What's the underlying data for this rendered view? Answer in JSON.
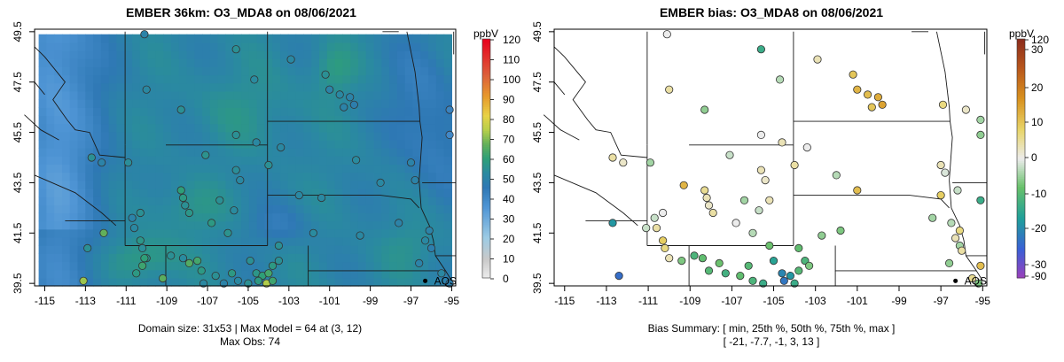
{
  "chart_data": [
    {
      "type": "heatmap",
      "title": "EMBER 36km: O3_MDA8 on 08/06/2021",
      "colorbar_label": "ppbV",
      "colorbar_ticks": [
        "0",
        "10",
        "20",
        "30",
        "40",
        "50",
        "60",
        "70",
        "80",
        "90",
        "100",
        "110",
        "120"
      ],
      "xticks": [
        -115,
        -113,
        -111,
        -109,
        -107,
        -105,
        -103,
        -101,
        -99,
        -97,
        -95
      ],
      "yticks": [
        39.5,
        41.5,
        43.5,
        45.5,
        47.5,
        49.5
      ],
      "xlim": [
        -115.5,
        -94.8
      ],
      "ylim": [
        39.4,
        49.6
      ],
      "annotation": "AQS",
      "annotation_point": [
        -96.3,
        39.6
      ],
      "footer": [
        "Domain size: 31x53 | Max Model = 64 at (3, 12)",
        "Max Obs: 74"
      ],
      "stations": [
        {
          "lon": -110.1,
          "lat": 49.4,
          "v": 50
        },
        {
          "lon": -105.6,
          "lat": 48.8,
          "v": 55
        },
        {
          "lon": -102.9,
          "lat": 48.4,
          "v": 52
        },
        {
          "lon": -101.2,
          "lat": 47.8,
          "v": 55
        },
        {
          "lon": -101.0,
          "lat": 47.2,
          "v": 50
        },
        {
          "lon": -100.5,
          "lat": 47.0,
          "v": 52
        },
        {
          "lon": -100.0,
          "lat": 46.9,
          "v": 50
        },
        {
          "lon": -99.8,
          "lat": 46.6,
          "v": 48
        },
        {
          "lon": -100.3,
          "lat": 46.5,
          "v": 50
        },
        {
          "lon": -110.0,
          "lat": 47.2,
          "v": 52
        },
        {
          "lon": -108.3,
          "lat": 46.4,
          "v": 55
        },
        {
          "lon": -104.7,
          "lat": 47.6,
          "v": 53
        },
        {
          "lon": -95.1,
          "lat": 46.4,
          "v": 42
        },
        {
          "lon": -95.1,
          "lat": 45.4,
          "v": 40
        },
        {
          "lon": -105.6,
          "lat": 45.4,
          "v": 55
        },
        {
          "lon": -104.6,
          "lat": 45.1,
          "v": 52
        },
        {
          "lon": -110.9,
          "lat": 44.3,
          "v": 54
        },
        {
          "lon": -112.7,
          "lat": 44.5,
          "v": 55
        },
        {
          "lon": -112.2,
          "lat": 44.3,
          "v": 50
        },
        {
          "lon": -103.4,
          "lat": 44.9,
          "v": 52
        },
        {
          "lon": -107.1,
          "lat": 44.6,
          "v": 56
        },
        {
          "lon": -104.0,
          "lat": 44.2,
          "v": 55
        },
        {
          "lon": -105.6,
          "lat": 44.0,
          "v": 54
        },
        {
          "lon": -105.4,
          "lat": 43.6,
          "v": 52
        },
        {
          "lon": -97.0,
          "lat": 44.3,
          "v": 50
        },
        {
          "lon": -98.5,
          "lat": 43.5,
          "v": 52
        },
        {
          "lon": -96.8,
          "lat": 43.6,
          "v": 50
        },
        {
          "lon": -101.4,
          "lat": 42.9,
          "v": 52
        },
        {
          "lon": -108.3,
          "lat": 43.2,
          "v": 60
        },
        {
          "lon": -108.2,
          "lat": 42.9,
          "v": 58
        },
        {
          "lon": -108.1,
          "lat": 42.6,
          "v": 55
        },
        {
          "lon": -107.9,
          "lat": 42.3,
          "v": 57
        },
        {
          "lon": -106.4,
          "lat": 42.8,
          "v": 55
        },
        {
          "lon": -105.7,
          "lat": 42.4,
          "v": 53
        },
        {
          "lon": -106.8,
          "lat": 41.9,
          "v": 58
        },
        {
          "lon": -106.0,
          "lat": 41.5,
          "v": 56
        },
        {
          "lon": -110.3,
          "lat": 42.3,
          "v": 55
        },
        {
          "lon": -110.7,
          "lat": 42.1,
          "v": 50
        },
        {
          "lon": -110.6,
          "lat": 41.7,
          "v": 52
        },
        {
          "lon": -110.3,
          "lat": 41.2,
          "v": 57
        },
        {
          "lon": -110.2,
          "lat": 40.9,
          "v": 54
        },
        {
          "lon": -110.0,
          "lat": 40.5,
          "v": 56
        },
        {
          "lon": -112.1,
          "lat": 41.5,
          "v": 67
        },
        {
          "lon": -110.2,
          "lat": 40.2,
          "v": 62
        },
        {
          "lon": -110.5,
          "lat": 39.9,
          "v": 58
        },
        {
          "lon": -110.1,
          "lat": 40.5,
          "v": 60
        },
        {
          "lon": -107.9,
          "lat": 40.3,
          "v": 65
        },
        {
          "lon": -107.5,
          "lat": 40.4,
          "v": 63
        },
        {
          "lon": -107.3,
          "lat": 40.0,
          "v": 58
        },
        {
          "lon": -108.8,
          "lat": 40.6,
          "v": 55
        },
        {
          "lon": -108.2,
          "lat": 40.5,
          "v": 53
        },
        {
          "lon": -106.6,
          "lat": 39.8,
          "v": 55
        },
        {
          "lon": -105.8,
          "lat": 39.9,
          "v": 58
        },
        {
          "lon": -105.5,
          "lat": 39.6,
          "v": 52
        },
        {
          "lon": -104.9,
          "lat": 40.4,
          "v": 55
        },
        {
          "lon": -104.6,
          "lat": 39.9,
          "v": 57
        },
        {
          "lon": -104.3,
          "lat": 39.8,
          "v": 60
        },
        {
          "lon": -104.0,
          "lat": 39.9,
          "v": 63
        },
        {
          "lon": -103.8,
          "lat": 40.2,
          "v": 58
        },
        {
          "lon": -103.5,
          "lat": 40.4,
          "v": 55
        },
        {
          "lon": -104.1,
          "lat": 39.5,
          "v": 74
        },
        {
          "lon": -103.8,
          "lat": 39.6,
          "v": 62
        },
        {
          "lon": -104.5,
          "lat": 39.6,
          "v": 58
        },
        {
          "lon": -105.0,
          "lat": 39.5,
          "v": 55
        },
        {
          "lon": -106.2,
          "lat": 39.5,
          "v": 50
        },
        {
          "lon": -107.2,
          "lat": 39.5,
          "v": 52
        },
        {
          "lon": -109.2,
          "lat": 39.7,
          "v": 66
        },
        {
          "lon": -113.1,
          "lat": 39.6,
          "v": 72
        },
        {
          "lon": -112.9,
          "lat": 40.9,
          "v": 55
        },
        {
          "lon": -103.5,
          "lat": 41.0,
          "v": 55
        },
        {
          "lon": -99.5,
          "lat": 41.4,
          "v": 52
        },
        {
          "lon": -97.6,
          "lat": 41.9,
          "v": 50
        },
        {
          "lon": -96.3,
          "lat": 41.2,
          "v": 52
        },
        {
          "lon": -96.0,
          "lat": 40.9,
          "v": 48
        },
        {
          "lon": -96.1,
          "lat": 41.6,
          "v": 50
        },
        {
          "lon": -96.6,
          "lat": 40.3,
          "v": 50
        },
        {
          "lon": -95.1,
          "lat": 39.5,
          "v": 48
        },
        {
          "lon": -95.5,
          "lat": 39.9,
          "v": 52
        },
        {
          "lon": -101.8,
          "lat": 41.5,
          "v": 53
        },
        {
          "lon": -102.5,
          "lat": 43.0,
          "v": 52
        },
        {
          "lon": -99.7,
          "lat": 44.4,
          "v": 53
        }
      ]
    },
    {
      "type": "scatter",
      "title": "EMBER bias: O3_MDA8 on 08/06/2021",
      "colorbar_label": "ppbV",
      "colorbar_ticks": [
        "-90",
        "-30",
        "-20",
        "-10",
        "0",
        "10",
        "20",
        "30",
        "120"
      ],
      "xticks": [
        -115,
        -113,
        -111,
        -109,
        -107,
        -105,
        -103,
        -101,
        -99,
        -97,
        -95
      ],
      "yticks": [
        39.5,
        41.5,
        43.5,
        45.5,
        47.5,
        49.5
      ],
      "xlim": [
        -115.5,
        -94.8
      ],
      "ylim": [
        39.4,
        49.6
      ],
      "annotation": "AQS",
      "annotation_point": [
        -96.3,
        39.6
      ],
      "footer": [
        "Bias Summary: [ min, 25th %, 50th %, 75th %, max ]",
        "[ -21,  -7.7,  -1,  3,  13 ]"
      ],
      "bias_summary": {
        "min": -21,
        "p25": -7.7,
        "p50": -1,
        "p75": 3,
        "max": 13
      },
      "stations": [
        {
          "lon": -110.1,
          "lat": 49.4,
          "v": 0
        },
        {
          "lon": -105.6,
          "lat": 48.8,
          "v": -12
        },
        {
          "lon": -102.9,
          "lat": 48.4,
          "v": 3
        },
        {
          "lon": -101.2,
          "lat": 47.8,
          "v": 9
        },
        {
          "lon": -101.0,
          "lat": 47.2,
          "v": 11
        },
        {
          "lon": -100.5,
          "lat": 47.0,
          "v": 10
        },
        {
          "lon": -100.0,
          "lat": 46.9,
          "v": 12
        },
        {
          "lon": -99.8,
          "lat": 46.6,
          "v": 13
        },
        {
          "lon": -100.3,
          "lat": 46.5,
          "v": 9
        },
        {
          "lon": -110.0,
          "lat": 47.2,
          "v": 4
        },
        {
          "lon": -108.3,
          "lat": 46.4,
          "v": -5
        },
        {
          "lon": -104.7,
          "lat": 47.6,
          "v": -3
        },
        {
          "lon": -96.9,
          "lat": 46.6,
          "v": 6
        },
        {
          "lon": -95.8,
          "lat": 46.4,
          "v": 2
        },
        {
          "lon": -95.1,
          "lat": 46.0,
          "v": -4
        },
        {
          "lon": -95.1,
          "lat": 45.4,
          "v": -5
        },
        {
          "lon": -105.6,
          "lat": 45.4,
          "v": 0
        },
        {
          "lon": -104.6,
          "lat": 45.1,
          "v": 3
        },
        {
          "lon": -110.9,
          "lat": 44.3,
          "v": -4
        },
        {
          "lon": -112.7,
          "lat": 44.5,
          "v": 4
        },
        {
          "lon": -112.2,
          "lat": 44.3,
          "v": 2
        },
        {
          "lon": -103.4,
          "lat": 44.9,
          "v": 0
        },
        {
          "lon": -107.1,
          "lat": 44.6,
          "v": -2
        },
        {
          "lon": -104.0,
          "lat": 44.2,
          "v": 4
        },
        {
          "lon": -105.6,
          "lat": 44.0,
          "v": 3
        },
        {
          "lon": -105.4,
          "lat": 43.6,
          "v": 2
        },
        {
          "lon": -102.0,
          "lat": 43.8,
          "v": -3
        },
        {
          "lon": -101.0,
          "lat": 43.2,
          "v": 10
        },
        {
          "lon": -97.0,
          "lat": 44.2,
          "v": 3
        },
        {
          "lon": -96.8,
          "lat": 43.9,
          "v": -1
        },
        {
          "lon": -97.0,
          "lat": 43.0,
          "v": 8
        },
        {
          "lon": -96.2,
          "lat": 43.2,
          "v": -2
        },
        {
          "lon": -95.1,
          "lat": 42.8,
          "v": -12
        },
        {
          "lon": -97.4,
          "lat": 42.1,
          "v": -4
        },
        {
          "lon": -96.5,
          "lat": 41.9,
          "v": -3
        },
        {
          "lon": -109.3,
          "lat": 43.4,
          "v": 11
        },
        {
          "lon": -108.3,
          "lat": 43.2,
          "v": 5
        },
        {
          "lon": -108.2,
          "lat": 42.9,
          "v": 3
        },
        {
          "lon": -108.1,
          "lat": 42.6,
          "v": 2
        },
        {
          "lon": -107.9,
          "lat": 42.3,
          "v": 4
        },
        {
          "lon": -106.4,
          "lat": 42.8,
          "v": -4
        },
        {
          "lon": -105.7,
          "lat": 42.4,
          "v": -2
        },
        {
          "lon": -105.2,
          "lat": 42.8,
          "v": 3
        },
        {
          "lon": -106.8,
          "lat": 41.9,
          "v": 0
        },
        {
          "lon": -106.0,
          "lat": 41.5,
          "v": -3
        },
        {
          "lon": -110.3,
          "lat": 42.3,
          "v": 0
        },
        {
          "lon": -110.7,
          "lat": 42.1,
          "v": -2
        },
        {
          "lon": -110.6,
          "lat": 41.7,
          "v": 4
        },
        {
          "lon": -110.3,
          "lat": 41.2,
          "v": 8
        },
        {
          "lon": -110.2,
          "lat": 40.9,
          "v": 6
        },
        {
          "lon": -110.0,
          "lat": 40.5,
          "v": 3
        },
        {
          "lon": -111.1,
          "lat": 41.7,
          "v": -2
        },
        {
          "lon": -112.7,
          "lat": 41.9,
          "v": -16
        },
        {
          "lon": -112.4,
          "lat": 39.8,
          "v": -21
        },
        {
          "lon": -109.4,
          "lat": 40.4,
          "v": -6
        },
        {
          "lon": -108.8,
          "lat": 40.6,
          "v": -10
        },
        {
          "lon": -108.4,
          "lat": 40.5,
          "v": -8
        },
        {
          "lon": -108.1,
          "lat": 40.0,
          "v": -9
        },
        {
          "lon": -107.6,
          "lat": 40.3,
          "v": -7
        },
        {
          "lon": -107.3,
          "lat": 39.9,
          "v": -11
        },
        {
          "lon": -106.6,
          "lat": 39.8,
          "v": -8
        },
        {
          "lon": -106.2,
          "lat": 40.2,
          "v": -9
        },
        {
          "lon": -106.0,
          "lat": 39.6,
          "v": -10
        },
        {
          "lon": -105.5,
          "lat": 39.5,
          "v": -12
        },
        {
          "lon": -105.0,
          "lat": 40.4,
          "v": -14
        },
        {
          "lon": -104.6,
          "lat": 39.9,
          "v": -18
        },
        {
          "lon": -104.5,
          "lat": 39.6,
          "v": -20
        },
        {
          "lon": -104.2,
          "lat": 39.8,
          "v": -16
        },
        {
          "lon": -104.0,
          "lat": 39.5,
          "v": -12
        },
        {
          "lon": -103.8,
          "lat": 40.0,
          "v": -9
        },
        {
          "lon": -103.5,
          "lat": 40.4,
          "v": -10
        },
        {
          "lon": -103.8,
          "lat": 40.9,
          "v": -8
        },
        {
          "lon": -105.2,
          "lat": 41.0,
          "v": -7
        },
        {
          "lon": -103.3,
          "lat": 40.2,
          "v": -6
        },
        {
          "lon": -96.3,
          "lat": 41.3,
          "v": 3
        },
        {
          "lon": -96.1,
          "lat": 41.0,
          "v": -4
        },
        {
          "lon": -96.0,
          "lat": 40.8,
          "v": 4
        },
        {
          "lon": -96.1,
          "lat": 41.6,
          "v": 6
        },
        {
          "lon": -95.1,
          "lat": 40.2,
          "v": 10
        },
        {
          "lon": -95.5,
          "lat": 39.7,
          "v": 5
        },
        {
          "lon": -95.2,
          "lat": 39.5,
          "v": -6
        },
        {
          "lon": -96.6,
          "lat": 40.3,
          "v": -5
        },
        {
          "lon": -101.8,
          "lat": 41.6,
          "v": -6
        },
        {
          "lon": -102.7,
          "lat": 41.4,
          "v": -5
        }
      ]
    }
  ]
}
